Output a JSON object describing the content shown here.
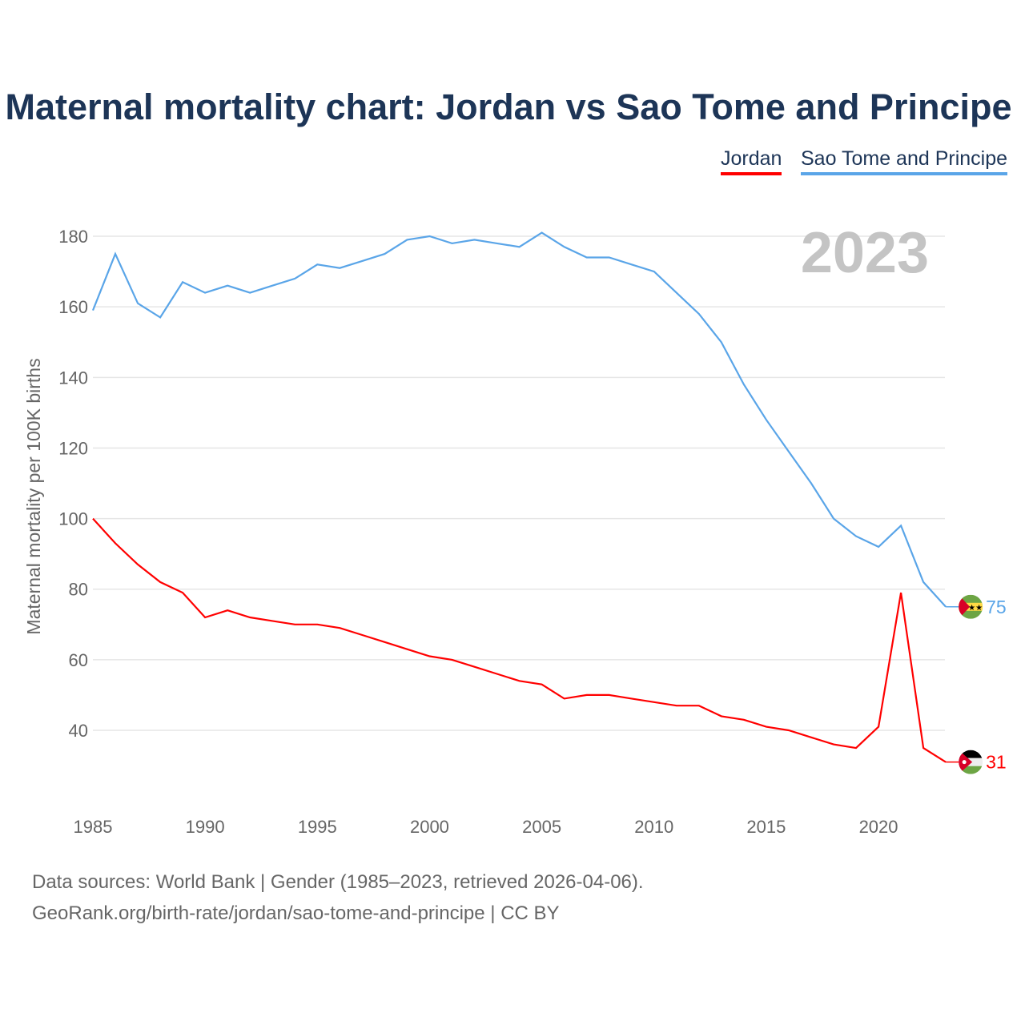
{
  "chart_data": {
    "type": "line",
    "title": "Maternal mortality chart: Jordan vs Sao Tome and Principe",
    "ylabel": "Maternal mortality per 100K births",
    "xlabel": "",
    "year_label": "2023",
    "xlim": [
      1985,
      2023
    ],
    "ylim": [
      20,
      190
    ],
    "yticks": [
      40,
      60,
      80,
      100,
      120,
      140,
      160,
      180
    ],
    "xticks": [
      1985,
      1990,
      1995,
      2000,
      2005,
      2010,
      2015,
      2020
    ],
    "grid": true,
    "legend_position": "top-right",
    "x": [
      1985,
      1986,
      1987,
      1988,
      1989,
      1990,
      1991,
      1992,
      1993,
      1994,
      1995,
      1996,
      1997,
      1998,
      1999,
      2000,
      2001,
      2002,
      2003,
      2004,
      2005,
      2006,
      2007,
      2008,
      2009,
      2010,
      2011,
      2012,
      2013,
      2014,
      2015,
      2016,
      2017,
      2018,
      2019,
      2020,
      2021,
      2022,
      2023
    ],
    "series": [
      {
        "name": "Jordan",
        "color": "#ff0000",
        "end_label": "31",
        "values": [
          100,
          93,
          87,
          82,
          79,
          72,
          74,
          72,
          71,
          70,
          70,
          69,
          67,
          65,
          63,
          61,
          60,
          58,
          56,
          54,
          53,
          49,
          50,
          50,
          49,
          48,
          47,
          47,
          44,
          43,
          41,
          40,
          38,
          36,
          35,
          41,
          79,
          35,
          31
        ]
      },
      {
        "name": "Sao Tome and Principe",
        "color": "#5aa5e8",
        "end_label": "75",
        "values": [
          159,
          175,
          161,
          157,
          167,
          164,
          166,
          164,
          166,
          168,
          172,
          171,
          173,
          175,
          179,
          180,
          178,
          179,
          178,
          177,
          181,
          177,
          174,
          174,
          172,
          170,
          164,
          158,
          150,
          138,
          128,
          119,
          110,
          100,
          95,
          92,
          98,
          82,
          75
        ]
      }
    ]
  },
  "footer": {
    "line1": "Data sources: World Bank | Gender (1985–2023, retrieved 2026-04-06).",
    "line2": "GeoRank.org/birth-rate/jordan/sao-tome-and-principe | CC BY"
  }
}
